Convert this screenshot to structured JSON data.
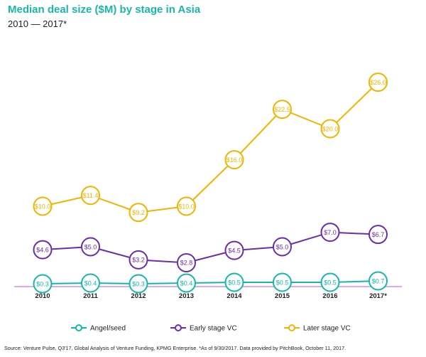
{
  "title": "Median deal size ($M) by stage in Asia",
  "subtitle": "2010 — 2017*",
  "source": "Source: Venture Pulse, Q3'17, Global Analysis of Venture Funding, KPMG Enterprise. *As of 9/30/2017. Data provided by PitchBook, October 11, 2017.",
  "colors": {
    "angel": "#14b8ab",
    "early": "#6a2ea8",
    "later": "#f0b400",
    "axis": "#c054c9",
    "title": "#1bb6a7"
  },
  "chart_data": {
    "type": "line",
    "categories": [
      "2010",
      "2011",
      "2012",
      "2013",
      "2014",
      "2015",
      "2016",
      "2017*"
    ],
    "series": [
      {
        "name": "Angel/seed",
        "values": [
          0.3,
          0.4,
          0.3,
          0.4,
          0.5,
          0.5,
          0.5,
          0.7
        ],
        "labels": [
          "$0.3",
          "$0.4",
          "$0.3",
          "$0.4",
          "$0.5",
          "$0.5",
          "$0.5",
          "$0.7"
        ]
      },
      {
        "name": "Early stage VC",
        "values": [
          4.6,
          5.0,
          3.2,
          2.8,
          4.5,
          5.0,
          7.0,
          6.7
        ],
        "labels": [
          "$4.6",
          "$5.0",
          "$3.2",
          "$2.8",
          "$4.5",
          "$5.0",
          "$7.0",
          "$6.7"
        ]
      },
      {
        "name": "Later stage VC",
        "values": [
          10.0,
          11.4,
          9.2,
          10.0,
          16.0,
          22.5,
          20.0,
          26.0
        ],
        "labels": [
          "$10.0",
          "$11.4",
          "$9.2",
          "$10.0",
          "$16.0",
          "$22.5",
          "$20.0",
          "$26.0"
        ]
      }
    ],
    "legend_position": "bottom",
    "grid": false
  }
}
